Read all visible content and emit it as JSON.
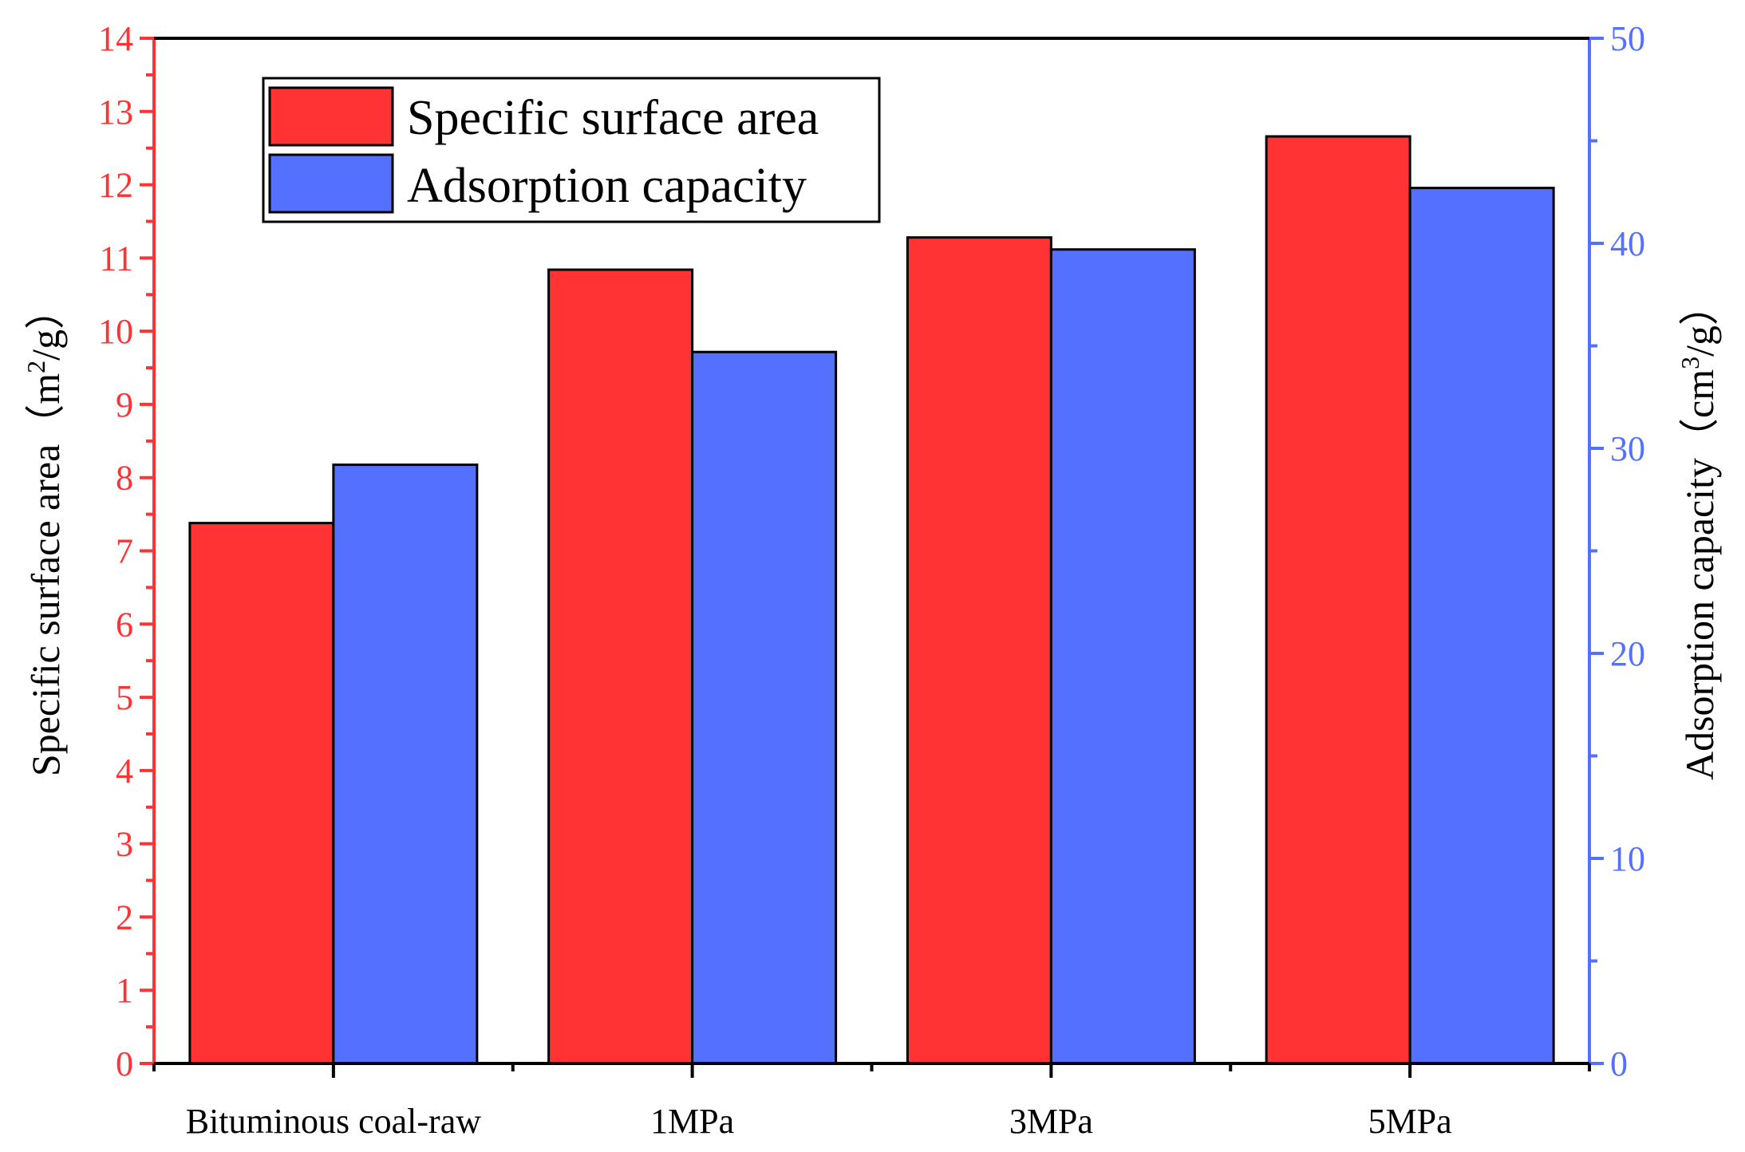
{
  "chart_data": {
    "type": "bar",
    "categories": [
      "Bituminous coal-raw",
      "1MPa",
      "3MPa",
      "5MPa"
    ],
    "series": [
      {
        "name": "Specific surface area",
        "axis": "left",
        "color": "#FF3333",
        "values": [
          7.38,
          10.84,
          11.28,
          12.66
        ]
      },
      {
        "name": "Adsorption capacity",
        "axis": "right",
        "color": "#5470FF",
        "values": [
          29.2,
          34.7,
          39.7,
          42.7
        ]
      }
    ],
    "left_axis": {
      "label": "Specific surface area",
      "unit_open": "（m",
      "unit_sup": "2",
      "unit_close": "/g）",
      "ylim": [
        0,
        14
      ],
      "major_ticks": [
        0,
        1,
        2,
        3,
        4,
        5,
        6,
        7,
        8,
        9,
        10,
        11,
        12,
        13,
        14
      ],
      "tick_labels": [
        "0",
        "1",
        "2",
        "3",
        "4",
        "5",
        "6",
        "7",
        "8",
        "9",
        "10",
        "11",
        "12",
        "13",
        "14"
      ],
      "color": "#FF3333"
    },
    "right_axis": {
      "label": "Adsorption capacity",
      "unit_open": "（cm",
      "unit_sup": "3",
      "unit_close": "/g）",
      "ylim": [
        0,
        50
      ],
      "major_ticks": [
        0,
        10,
        20,
        30,
        40,
        50
      ],
      "tick_labels": [
        "0",
        "10",
        "20",
        "30",
        "40",
        "50"
      ],
      "color": "#5470FF"
    },
    "legend": {
      "position": "top-left",
      "entries": [
        "Specific surface area",
        "Adsorption capacity"
      ]
    },
    "grid": false,
    "title": "",
    "xlabel": ""
  }
}
